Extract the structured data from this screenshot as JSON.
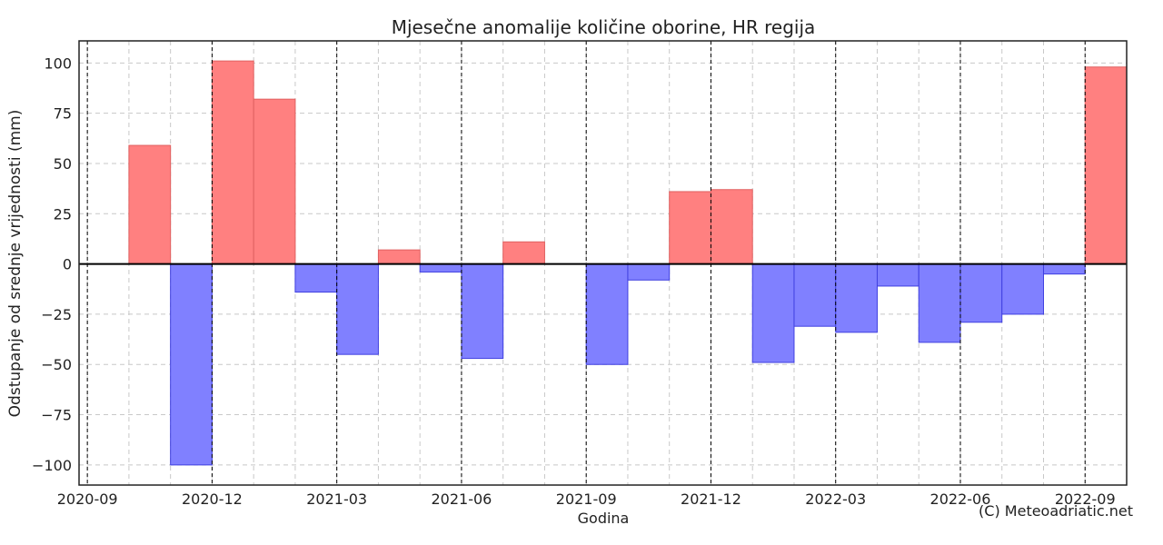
{
  "chart_data": {
    "type": "bar",
    "title": "Mjesečne anomalije količine oborine, HR regija",
    "xlabel": "Godina",
    "ylabel": "Odstupanje od srednje vrijednosti (mm)",
    "credit": "(C) Meteoadriatic.net",
    "x_ticks": [
      "2020-09",
      "2020-12",
      "2021-03",
      "2021-06",
      "2021-09",
      "2021-12",
      "2022-03",
      "2022-06",
      "2022-09"
    ],
    "y_ticks": [
      100,
      75,
      50,
      25,
      0,
      -25,
      -50,
      -75,
      -100
    ],
    "ylim": [
      -110,
      111
    ],
    "grid": true,
    "colors": {
      "positive": "#ff8080",
      "positive_edge": "#e06060",
      "negative": "#8080ff",
      "negative_edge": "#4040e0"
    },
    "categories": [
      "2020-10",
      "2020-11",
      "2020-12",
      "2021-01",
      "2021-02",
      "2021-03",
      "2021-04",
      "2021-05",
      "2021-06",
      "2021-07",
      "2021-08",
      "2021-09",
      "2021-10",
      "2021-11",
      "2021-12",
      "2022-01",
      "2022-02",
      "2022-03",
      "2022-04",
      "2022-05",
      "2022-06",
      "2022-07",
      "2022-08",
      "2022-09"
    ],
    "values": [
      59,
      -100,
      101,
      82,
      -14,
      -45,
      7,
      -4,
      -47,
      11,
      0,
      -50,
      -8,
      36,
      37,
      -49,
      -31,
      -34,
      -11,
      -39,
      -29,
      -25,
      -5,
      98
    ]
  }
}
